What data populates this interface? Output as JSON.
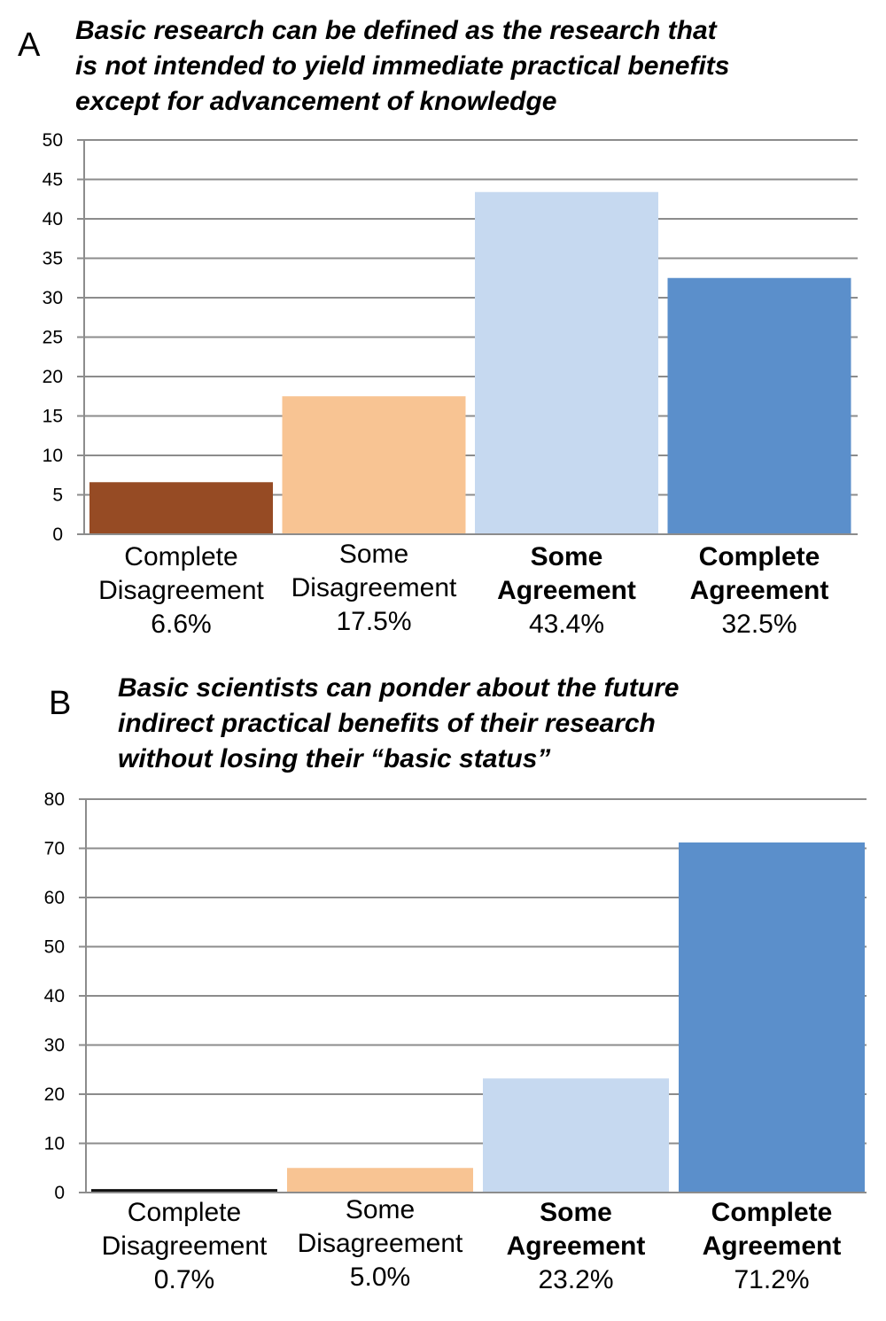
{
  "chart_data": [
    {
      "type": "bar",
      "panel": "A",
      "title_lines": [
        "Basic research can be defined as the research that",
        "is not intended to yield immediate practical benefits",
        "except for advancement of knowledge"
      ],
      "categories": [
        {
          "line1": "Complete",
          "line2": "Disagreement",
          "pct": "6.6%",
          "bold": false
        },
        {
          "line1": "Some",
          "line2": "Disagreement",
          "pct": "17.5%",
          "bold": false
        },
        {
          "line1": "Some",
          "line2": "Agreement",
          "pct": "43.4%",
          "bold": true
        },
        {
          "line1": "Complete",
          "line2": "Agreement",
          "pct": "32.5%",
          "bold": true
        }
      ],
      "values": [
        6.6,
        17.5,
        43.4,
        32.5
      ],
      "colors": [
        "#964b24",
        "#f8c493",
        "#c6d9f0",
        "#5b8fcb"
      ],
      "ylim": [
        0,
        50
      ],
      "yticks": [
        "0",
        "5",
        "10",
        "15",
        "20",
        "25",
        "30",
        "35",
        "40",
        "45",
        "50"
      ],
      "grid": true,
      "xlabel": "",
      "ylabel": ""
    },
    {
      "type": "bar",
      "panel": "B",
      "title_lines": [
        "Basic scientists can ponder about the future",
        "indirect practical benefits of their research",
        "without losing their “basic status”"
      ],
      "categories": [
        {
          "line1": "Complete",
          "line2": "Disagreement",
          "pct": "0.7%",
          "bold": false
        },
        {
          "line1": "Some",
          "line2": "Disagreement",
          "pct": "5.0%",
          "bold": false
        },
        {
          "line1": "Some",
          "line2": "Agreement",
          "pct": "23.2%",
          "bold": true
        },
        {
          "line1": "Complete",
          "line2": "Agreement",
          "pct": "71.2%",
          "bold": true
        }
      ],
      "values": [
        0.7,
        5.0,
        23.2,
        71.2
      ],
      "colors": [
        "#111111",
        "#f8c493",
        "#c6d9f0",
        "#5b8fcb"
      ],
      "ylim": [
        0,
        80
      ],
      "yticks": [
        "0",
        "10",
        "20",
        "30",
        "40",
        "50",
        "60",
        "70",
        "80"
      ],
      "grid": true,
      "xlabel": "",
      "ylabel": ""
    }
  ]
}
